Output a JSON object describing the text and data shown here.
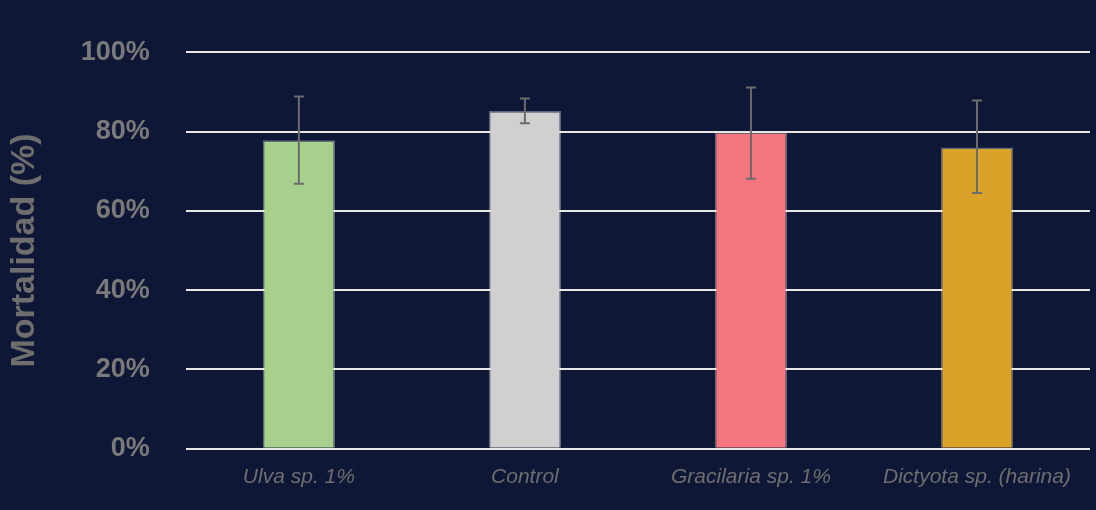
{
  "chart_data": {
    "type": "bar",
    "ylabel": "Mortalidad (%)",
    "categories": [
      "Ulva sp. 1%",
      "Control",
      "Gracilaria sp. 1%",
      "Dictyota sp. (harina)"
    ],
    "values": [
      77.8,
      85.2,
      79.8,
      76.0
    ],
    "colors": [
      "#a8d08d",
      "#d0d0d0",
      "#f4777f",
      "#d9a32a"
    ],
    "errors": [
      [
        66.8,
        88.8
      ],
      [
        82.1,
        88.3
      ],
      [
        68.1,
        91.1
      ],
      [
        64.5,
        87.8
      ]
    ],
    "ylim": [
      0,
      100
    ],
    "yticks": [
      {
        "value": 0,
        "label": "0%"
      },
      {
        "value": 20,
        "label": "20%"
      },
      {
        "value": 40,
        "label": "40%"
      },
      {
        "value": 60,
        "label": "60%"
      },
      {
        "value": 80,
        "label": "80%"
      },
      {
        "value": 100,
        "label": "100%"
      }
    ],
    "grid": "y",
    "legend": false
  }
}
